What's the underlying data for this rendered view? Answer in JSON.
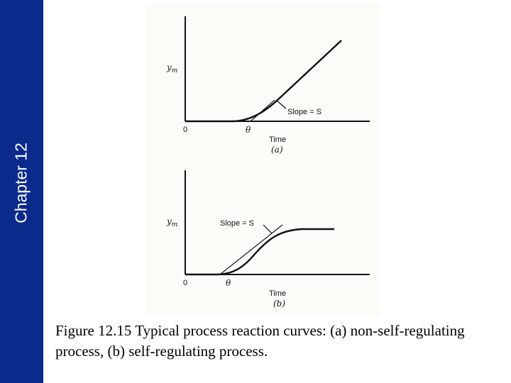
{
  "sidebar": {
    "chapter_label": "Chapter 12",
    "color": "#0a2a8c"
  },
  "figure": {
    "panel_a": {
      "y_label": "y",
      "y_label_sub": "m",
      "origin_label": "0",
      "delay_label": "θ",
      "slope_label": "Slope = S",
      "x_label": "Time",
      "panel_tag": "(a)"
    },
    "panel_b": {
      "y_label": "y",
      "y_label_sub": "m",
      "origin_label": "0",
      "delay_label": "θ",
      "slope_label": "Slope = S",
      "x_label": "Time",
      "panel_tag": "(b)"
    }
  },
  "caption": {
    "text": "Figure 12.15 Typical process reaction curves: (a) non-self-regulating process, (b) self-regulating process."
  }
}
